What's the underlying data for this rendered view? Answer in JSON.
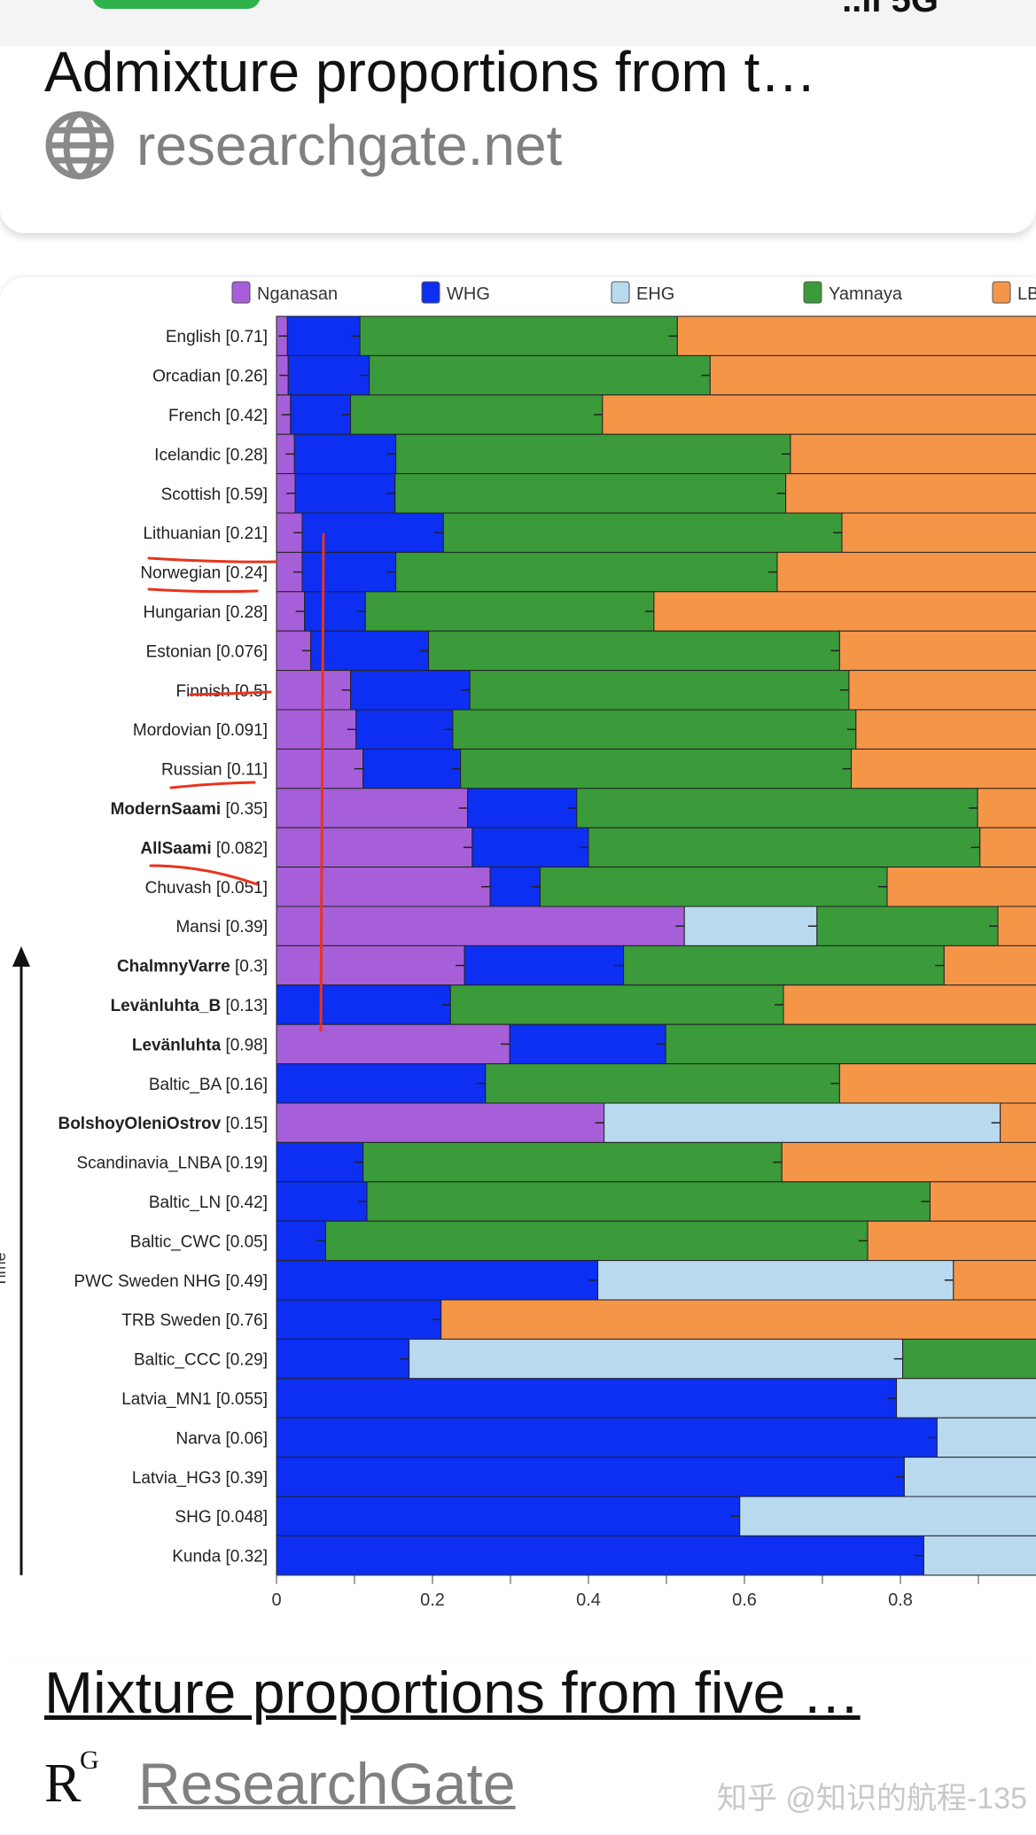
{
  "status_bar": {
    "right_text": "..ıl 5G"
  },
  "result_card": {
    "title": "Admixture proportions from t…",
    "site": "researchgate.net",
    "site_icon": "globe-icon"
  },
  "image_caption": {
    "title": "Mixture proportions from five …",
    "source": "ResearchGate",
    "source_logo": "RG",
    "watermark": "知乎 @知识的航程-135"
  },
  "chart_data": {
    "type": "bar",
    "orientation": "horizontal-stacked",
    "legend": [
      "Nganasan",
      "WHG",
      "EHG",
      "Yamnaya",
      "LB"
    ],
    "legend_placement": "top",
    "colors": [
      "#a65fd8",
      "#0c2ff2",
      "#b9d9ef",
      "#3b9a3a",
      "#f59548"
    ],
    "xlim": [
      0,
      1
    ],
    "x_ticks": [
      "0",
      "0.2",
      "0.4",
      "0.6",
      "0.8"
    ],
    "ylabel": "Time",
    "rows": [
      {
        "name": "English",
        "value": "0.71",
        "bold": false,
        "series": [
          0.014,
          0.093,
          0,
          0.407,
          0.486
        ]
      },
      {
        "name": "Orcadian",
        "value": "0.26",
        "bold": false,
        "series": [
          0.015,
          0.104,
          0,
          0.437,
          0.444
        ]
      },
      {
        "name": "French",
        "value": "0.42",
        "bold": false,
        "series": [
          0.018,
          0.077,
          0,
          0.323,
          0.582
        ]
      },
      {
        "name": "Icelandic",
        "value": "0.28",
        "bold": false,
        "series": [
          0.023,
          0.13,
          0,
          0.506,
          0.341
        ]
      },
      {
        "name": "Scottish",
        "value": "0.59",
        "bold": false,
        "series": [
          0.024,
          0.128,
          0,
          0.501,
          0.347
        ]
      },
      {
        "name": "Lithuanian",
        "value": "0.21",
        "bold": false,
        "series": [
          0.033,
          0.181,
          0,
          0.511,
          0.275
        ]
      },
      {
        "name": "Norwegian",
        "value": "0.24",
        "bold": false,
        "series": [
          0.033,
          0.12,
          0,
          0.489,
          0.358
        ]
      },
      {
        "name": "Hungarian",
        "value": "0.28",
        "bold": false,
        "series": [
          0.036,
          0.078,
          0,
          0.37,
          0.516
        ]
      },
      {
        "name": "Estonian",
        "value": "0.076",
        "bold": false,
        "series": [
          0.044,
          0.151,
          0,
          0.527,
          0.278
        ]
      },
      {
        "name": "Finnish",
        "value": "0.5",
        "bold": false,
        "series": [
          0.095,
          0.153,
          0,
          0.486,
          0.266
        ]
      },
      {
        "name": "Mordovian",
        "value": "0.091",
        "bold": false,
        "series": [
          0.102,
          0.124,
          0,
          0.517,
          0.257
        ]
      },
      {
        "name": "Russian",
        "value": "0.11",
        "bold": false,
        "series": [
          0.111,
          0.125,
          0,
          0.501,
          0.263
        ]
      },
      {
        "name": "ModernSaami",
        "value": "0.35",
        "bold": true,
        "series": [
          0.245,
          0.14,
          0,
          0.514,
          0.101
        ]
      },
      {
        "name": "AllSaami",
        "value": "0.082",
        "bold": true,
        "series": [
          0.251,
          0.149,
          0,
          0.502,
          0.098
        ]
      },
      {
        "name": "Chuvash",
        "value": "0.051",
        "bold": false,
        "series": [
          0.274,
          0.064,
          0,
          0.445,
          0.217
        ]
      },
      {
        "name": "Mansi",
        "value": "0.39",
        "bold": false,
        "series": [
          0.523,
          0,
          0.17,
          0.232,
          0.075
        ]
      },
      {
        "name": "ChalmnyVarre",
        "value": "0.3",
        "bold": true,
        "series": [
          0.241,
          0.204,
          0,
          0.411,
          0.144
        ]
      },
      {
        "name": "Levänluhta_B",
        "value": "0.13",
        "bold": true,
        "series": [
          0,
          0.223,
          0,
          0.427,
          0.35
        ]
      },
      {
        "name": "Levänluhta",
        "value": "0.98",
        "bold": true,
        "series": [
          0.299,
          0.2,
          0,
          0.501,
          0
        ]
      },
      {
        "name": "Baltic_BA",
        "value": "0.16",
        "bold": false,
        "series": [
          0,
          0.268,
          0,
          0.454,
          0.278
        ]
      },
      {
        "name": "BolshoyOleniOstrov",
        "value": "0.15",
        "bold": true,
        "series": [
          0.42,
          0,
          0.508,
          0,
          0.072
        ]
      },
      {
        "name": "Scandinavia_LNBA",
        "value": "0.19",
        "bold": false,
        "series": [
          0,
          0.111,
          0,
          0.537,
          0.352
        ]
      },
      {
        "name": "Baltic_LN",
        "value": "0.42",
        "bold": false,
        "series": [
          0,
          0.116,
          0,
          0.722,
          0.162
        ]
      },
      {
        "name": "Baltic_CWC",
        "value": "0.05",
        "bold": false,
        "series": [
          0,
          0.063,
          0,
          0.695,
          0.242
        ]
      },
      {
        "name": "PWC Sweden NHG",
        "value": "0.49",
        "bold": false,
        "series": [
          0,
          0.412,
          0.456,
          0,
          0.132
        ]
      },
      {
        "name": "TRB Sweden",
        "value": "0.76",
        "bold": false,
        "series": [
          0,
          0.211,
          0,
          0,
          0.789
        ]
      },
      {
        "name": "Baltic_CCC",
        "value": "0.29",
        "bold": false,
        "series": [
          0,
          0.17,
          0.633,
          0.197,
          0
        ]
      },
      {
        "name": "Latvia_MN1",
        "value": "0.055",
        "bold": false,
        "series": [
          0,
          0.795,
          0.205,
          0,
          0
        ]
      },
      {
        "name": "Narva",
        "value": "0.06",
        "bold": false,
        "series": [
          0,
          0.847,
          0.153,
          0,
          0
        ]
      },
      {
        "name": "Latvia_HG3",
        "value": "0.39",
        "bold": false,
        "series": [
          0,
          0.805,
          0.195,
          0,
          0
        ]
      },
      {
        "name": "SHG",
        "value": "0.048",
        "bold": false,
        "series": [
          0,
          0.594,
          0.406,
          0,
          0
        ]
      },
      {
        "name": "Kunda",
        "value": "0.32",
        "bold": false,
        "series": [
          0,
          0.83,
          0.17,
          0,
          0
        ]
      }
    ]
  }
}
